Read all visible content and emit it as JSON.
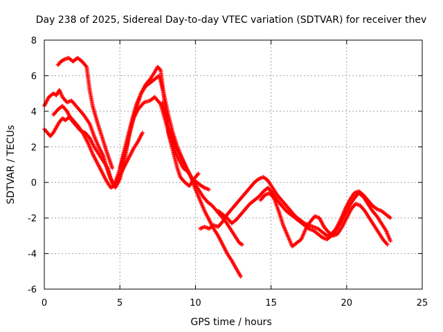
{
  "chart_data": {
    "type": "scatter",
    "title": "Day 238 of 2025, Sidereal Day-to-day VTEC variation (SDTVAR) for receiver thev",
    "xlabel": "GPS time / hours",
    "ylabel": "SDTVAR / TECUs",
    "xlim": [
      0,
      25
    ],
    "ylim": [
      -6,
      8
    ],
    "xticks": [
      0,
      5,
      10,
      15,
      20,
      25
    ],
    "yticks": [
      -6,
      -4,
      -2,
      0,
      2,
      4,
      6,
      8
    ],
    "xtick_labels": [
      "0",
      "5",
      "10",
      "15",
      "20",
      "25"
    ],
    "ytick_labels": [
      "-6",
      "-4",
      "-2",
      "0",
      "2",
      "4",
      "6",
      "8"
    ],
    "grid": true,
    "marker": "+",
    "marker_color": "#ff0000",
    "series": [
      {
        "name": "track-1",
        "x": [
          0.0,
          0.3,
          0.6,
          0.8,
          1.0,
          1.2,
          1.5,
          1.8,
          2.2,
          2.6,
          3.0,
          3.3,
          3.6,
          3.9,
          4.1,
          4.3,
          4.5,
          4.7,
          5.0,
          5.3,
          5.6,
          5.9,
          6.2,
          6.6,
          7.0,
          7.3,
          7.5,
          7.7,
          8.0,
          8.3,
          8.6,
          8.9,
          9.2,
          9.5,
          9.8,
          10.1,
          10.4,
          10.6,
          10.9
        ],
        "y": [
          4.3,
          4.8,
          5.0,
          4.9,
          5.2,
          4.8,
          4.5,
          4.6,
          4.2,
          3.8,
          3.3,
          2.6,
          2.0,
          1.5,
          0.9,
          0.4,
          0.0,
          -0.3,
          0.2,
          1.2,
          2.6,
          3.6,
          4.1,
          4.5,
          4.6,
          4.8,
          4.6,
          4.4,
          3.5,
          2.6,
          1.8,
          1.3,
          0.8,
          0.6,
          0.2,
          0.0,
          -0.2,
          -0.3,
          -0.4
        ]
      },
      {
        "name": "track-2",
        "x": [
          0.0,
          0.2,
          0.4,
          0.6,
          0.8,
          1.0,
          1.2,
          1.4,
          1.7,
          2.0,
          2.3,
          2.6,
          2.9,
          3.2,
          3.5,
          3.8,
          4.1,
          4.4,
          4.6,
          4.9,
          5.2,
          5.5,
          5.8,
          6.1,
          6.4,
          6.7,
          7.0,
          7.3,
          7.5,
          7.7,
          8.0,
          8.2,
          8.5,
          8.8,
          9.0,
          9.3,
          9.6,
          9.9,
          10.2
        ],
        "y": [
          3.0,
          2.8,
          2.6,
          2.8,
          3.1,
          3.4,
          3.6,
          3.5,
          3.7,
          3.4,
          3.1,
          2.7,
          2.2,
          1.6,
          1.1,
          0.6,
          0.1,
          -0.3,
          -0.2,
          0.5,
          1.3,
          2.2,
          3.3,
          4.2,
          5.0,
          5.5,
          5.8,
          6.2,
          6.5,
          6.3,
          4.2,
          2.8,
          1.8,
          0.8,
          0.3,
          0.0,
          -0.2,
          0.2,
          0.5
        ]
      },
      {
        "name": "track-3",
        "x": [
          0.9,
          1.1,
          1.3,
          1.6,
          1.9,
          2.2,
          2.5,
          2.8,
          3.0,
          3.2,
          3.5,
          3.8,
          4.1,
          4.3,
          4.5
        ],
        "y": [
          6.6,
          6.8,
          6.9,
          7.0,
          6.8,
          7.0,
          6.8,
          6.5,
          5.2,
          4.3,
          3.4,
          2.6,
          1.8,
          1.3,
          0.8
        ]
      },
      {
        "name": "track-4",
        "x": [
          0.6,
          0.9,
          1.2,
          1.5,
          1.8,
          2.1,
          2.4,
          2.7,
          3.0,
          3.3,
          3.6,
          3.9,
          4.2,
          4.4,
          4.6,
          4.8,
          5.0,
          5.3,
          5.6,
          5.9,
          6.2,
          6.5
        ],
        "y": [
          3.8,
          4.1,
          4.3,
          4.0,
          3.5,
          3.2,
          2.9,
          2.8,
          2.5,
          2.0,
          1.6,
          1.2,
          0.8,
          0.2,
          -0.2,
          -0.1,
          0.4,
          0.9,
          1.4,
          1.9,
          2.3,
          2.8
        ]
      },
      {
        "name": "track-5",
        "x": [
          5.0,
          5.2,
          5.5,
          5.8,
          6.1,
          6.4,
          6.7,
          7.0,
          7.3,
          7.6,
          7.9,
          8.2,
          8.5,
          8.8,
          9.1,
          9.4,
          9.7,
          10.0,
          10.3,
          10.6,
          10.9,
          11.2,
          11.5,
          11.8,
          12.1,
          12.4,
          12.6,
          12.8,
          13.0
        ],
        "y": [
          0.8,
          1.5,
          2.5,
          3.5,
          4.4,
          5.0,
          5.4,
          5.6,
          5.8,
          6.0,
          5.0,
          3.8,
          2.8,
          2.0,
          1.4,
          0.8,
          0.3,
          -0.4,
          -1.0,
          -1.6,
          -2.1,
          -2.6,
          -3.0,
          -3.5,
          -4.0,
          -4.4,
          -4.7,
          -5.0,
          -5.3
        ]
      },
      {
        "name": "track-6",
        "x": [
          7.8,
          8.1,
          8.4,
          8.7,
          9.0,
          9.3,
          9.6,
          9.9,
          10.2,
          10.5,
          10.8,
          11.1,
          11.4,
          11.7,
          12.0,
          12.3,
          12.6,
          12.9,
          13.1
        ],
        "y": [
          4.5,
          3.5,
          2.6,
          2.0,
          1.5,
          1.0,
          0.5,
          0.0,
          -0.4,
          -0.8,
          -1.1,
          -1.3,
          -1.6,
          -1.9,
          -2.2,
          -2.6,
          -3.0,
          -3.4,
          -3.5
        ]
      },
      {
        "name": "track-7",
        "x": [
          10.3,
          10.6,
          10.9,
          11.2,
          11.5,
          11.8,
          12.1,
          12.4,
          12.7,
          13.0,
          13.3,
          13.6,
          13.9,
          14.2,
          14.5,
          14.8,
          15.1,
          15.4,
          15.7,
          16.0,
          16.3,
          16.6,
          16.9,
          17.2,
          17.5,
          17.8,
          18.1,
          18.4,
          18.7,
          19.0,
          19.3,
          19.6,
          19.9,
          20.2,
          20.5,
          20.8,
          21.1,
          21.4,
          21.7,
          22.0,
          22.3,
          22.6,
          22.9
        ],
        "y": [
          -2.6,
          -2.5,
          -2.6,
          -2.4,
          -2.5,
          -2.2,
          -1.8,
          -1.5,
          -1.2,
          -0.9,
          -0.6,
          -0.3,
          0.0,
          0.2,
          0.3,
          0.1,
          -0.3,
          -0.7,
          -1.0,
          -1.3,
          -1.6,
          -1.9,
          -2.1,
          -2.3,
          -2.4,
          -2.5,
          -2.6,
          -2.8,
          -3.0,
          -2.9,
          -2.6,
          -2.1,
          -1.5,
          -1.0,
          -0.6,
          -0.5,
          -0.7,
          -1.0,
          -1.3,
          -1.5,
          -1.6,
          -1.8,
          -2.0
        ]
      },
      {
        "name": "track-8",
        "x": [
          11.5,
          11.8,
          12.1,
          12.4,
          12.7,
          13.0,
          13.3,
          13.6,
          13.9,
          14.2,
          14.5,
          14.8,
          15.1,
          15.4,
          15.7,
          16.0,
          16.3,
          16.6,
          16.9,
          17.2,
          17.5,
          17.8,
          18.1,
          18.4,
          18.7,
          19.0,
          19.3,
          19.6,
          19.9,
          20.2,
          20.5,
          20.8,
          21.1,
          21.4,
          21.7,
          22.0,
          22.3,
          22.6,
          22.9
        ],
        "y": [
          -1.6,
          -1.8,
          -2.0,
          -2.3,
          -2.1,
          -1.8,
          -1.5,
          -1.2,
          -1.0,
          -0.8,
          -0.5,
          -0.3,
          -0.6,
          -1.0,
          -1.3,
          -1.6,
          -1.8,
          -2.0,
          -2.2,
          -2.4,
          -2.6,
          -2.7,
          -2.9,
          -3.1,
          -3.2,
          -3.0,
          -2.7,
          -2.3,
          -1.8,
          -1.3,
          -0.9,
          -0.6,
          -0.8,
          -1.2,
          -1.6,
          -1.9,
          -2.3,
          -2.7,
          -3.3
        ]
      },
      {
        "name": "track-9",
        "x": [
          14.3,
          14.6,
          14.9,
          15.2,
          15.5,
          15.8,
          16.1,
          16.4,
          16.7,
          17.0,
          17.3,
          17.6,
          17.9,
          18.2,
          18.5,
          18.8,
          19.1,
          19.4,
          19.7,
          20.0,
          20.3,
          20.6,
          20.9,
          21.2,
          21.5,
          21.8,
          22.1,
          22.4,
          22.7
        ],
        "y": [
          -1.0,
          -0.7,
          -0.6,
          -0.9,
          -1.6,
          -2.4,
          -3.0,
          -3.6,
          -3.4,
          -3.2,
          -2.6,
          -2.2,
          -1.9,
          -2.0,
          -2.5,
          -2.8,
          -3.0,
          -2.9,
          -2.5,
          -2.0,
          -1.5,
          -1.2,
          -1.3,
          -1.6,
          -2.0,
          -2.4,
          -2.8,
          -3.2,
          -3.5
        ]
      }
    ]
  }
}
